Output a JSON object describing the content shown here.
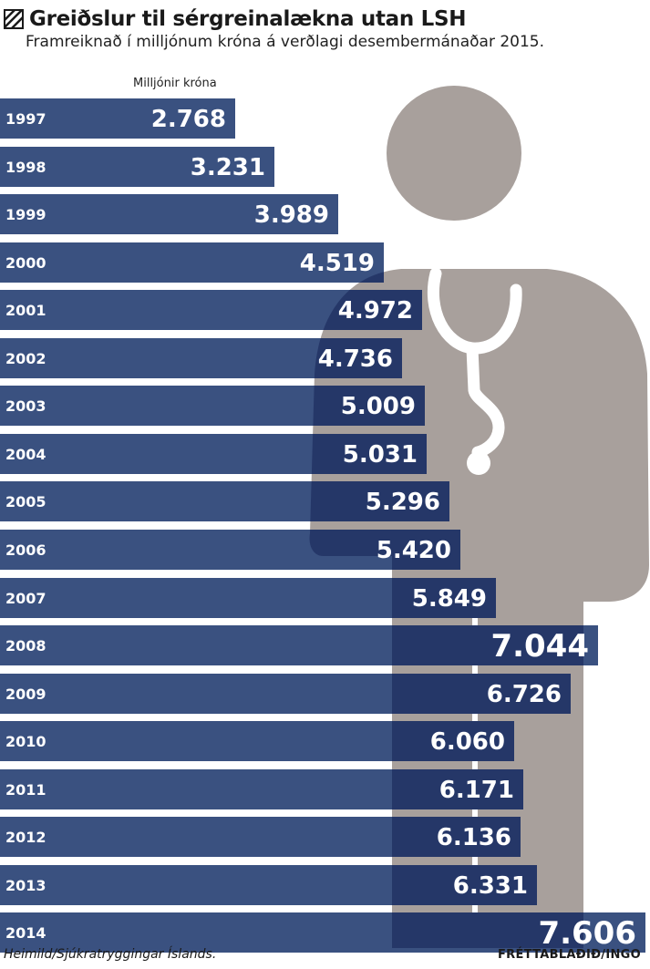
{
  "header": {
    "title": "Greiðslur til sérgreinalækna utan LSH",
    "subtitle": "Framreiknað í milljónum króna á verðlagi desembermánaðar 2015.",
    "unit_label": "Milljónir króna"
  },
  "footer": {
    "source": "Heimild/Sjúkratryggingar Íslands.",
    "credit": "FRÉTTABLAÐIÐ/INGO"
  },
  "colors": {
    "bar": "#3a5180",
    "bar_over_figure": "rgba(32,48,98,0.78)",
    "figure": "#a8a09c",
    "stethoscope": "#ffffff"
  },
  "icons": {
    "title_marker": "hatched-square-icon",
    "illustration": "doctor-silhouette-icon"
  },
  "chart_data": {
    "type": "bar",
    "orientation": "horizontal",
    "categories": [
      "1997",
      "1998",
      "1999",
      "2000",
      "2001",
      "2002",
      "2003",
      "2004",
      "2005",
      "2006",
      "2007",
      "2008",
      "2009",
      "2010",
      "2011",
      "2012",
      "2013",
      "2014"
    ],
    "labels": [
      "2.768",
      "3.231",
      "3.989",
      "4.519",
      "4.972",
      "4.736",
      "5.009",
      "5.031",
      "5.296",
      "5.420",
      "5.849",
      "7.044",
      "6.726",
      "6.060",
      "6.171",
      "6.136",
      "6.331",
      "7.606"
    ],
    "values": [
      2768,
      3231,
      3989,
      4519,
      4972,
      4736,
      5009,
      5031,
      5296,
      5420,
      5849,
      7044,
      6726,
      6060,
      6171,
      6136,
      6331,
      7606
    ],
    "highlighted": [
      "2008",
      "2014"
    ],
    "xlabel": "Milljónir króna",
    "title": "Greiðslur til sérgreinalækna utan LSH"
  }
}
